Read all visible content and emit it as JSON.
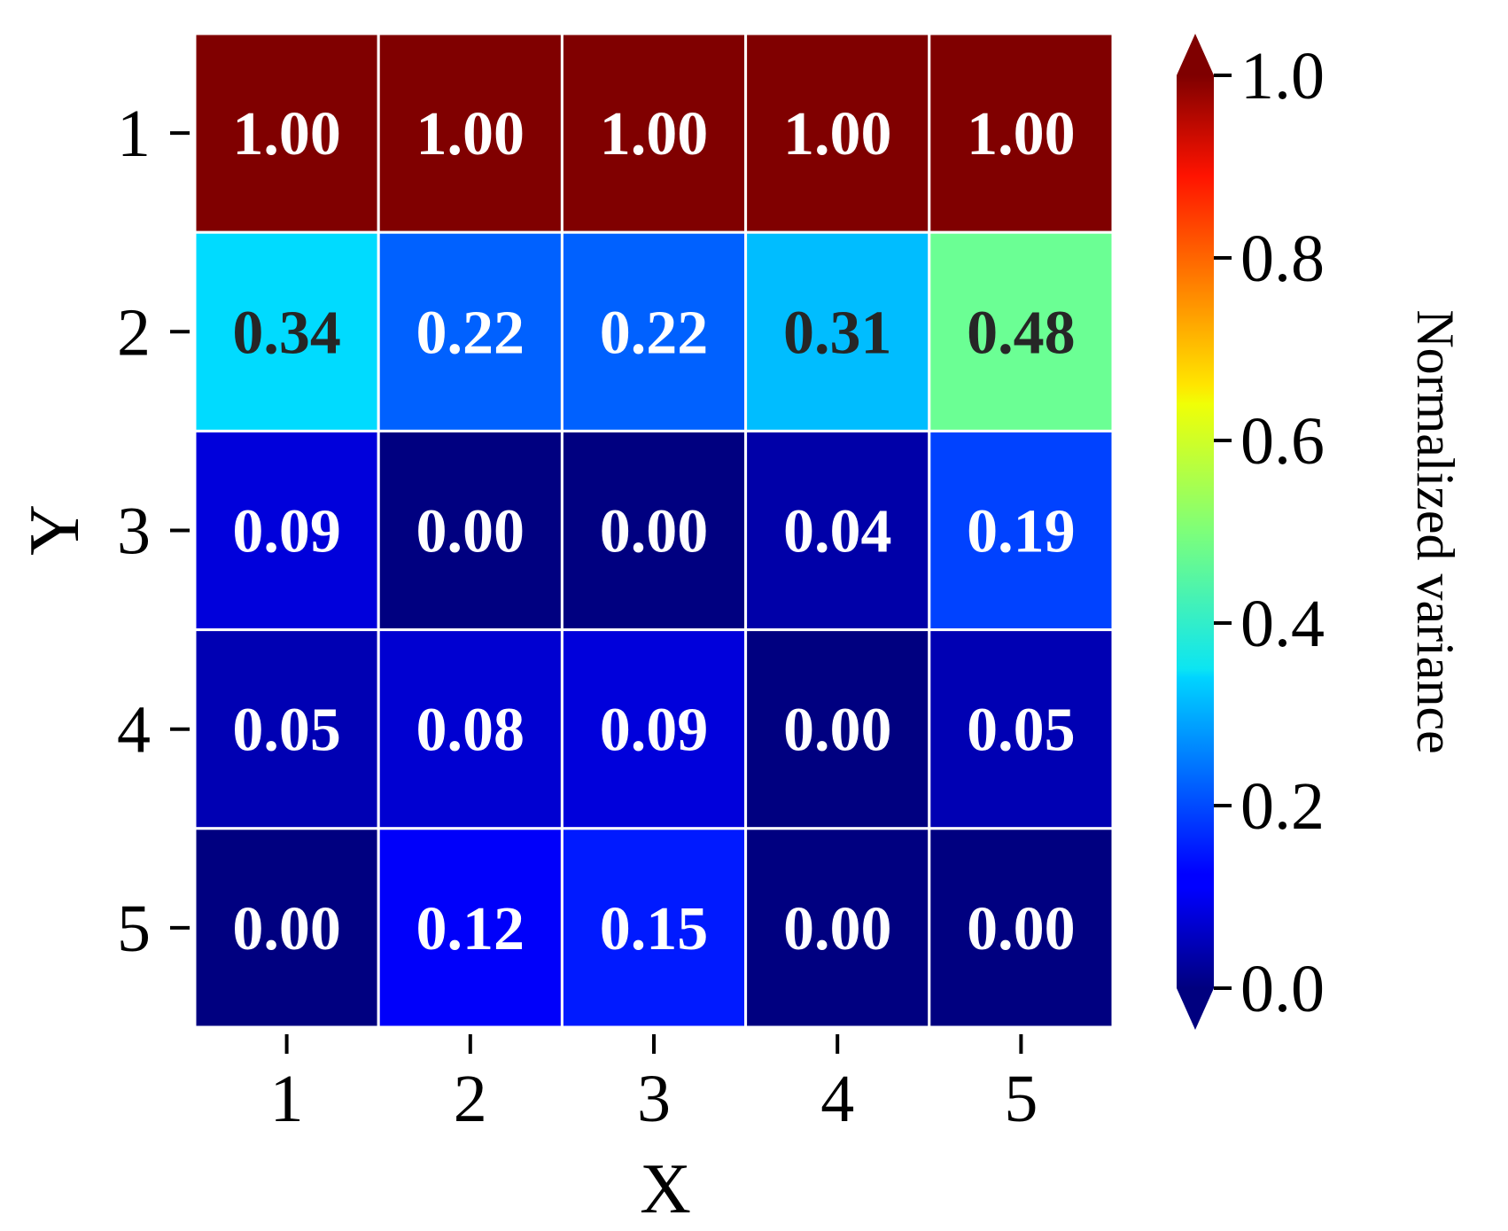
{
  "chart_data": {
    "type": "heatmap",
    "title": "",
    "xlabel": "X",
    "ylabel": "Y",
    "x_categories": [
      "1",
      "2",
      "3",
      "4",
      "5"
    ],
    "y_categories": [
      "1",
      "2",
      "3",
      "4",
      "5"
    ],
    "values": [
      [
        1.0,
        1.0,
        1.0,
        1.0,
        1.0
      ],
      [
        0.34,
        0.22,
        0.22,
        0.31,
        0.48
      ],
      [
        0.09,
        0.0,
        0.0,
        0.04,
        0.19
      ],
      [
        0.05,
        0.08,
        0.09,
        0.0,
        0.05
      ],
      [
        0.0,
        0.12,
        0.15,
        0.0,
        0.0
      ]
    ],
    "value_format": "2 decimals",
    "colormap": "jet",
    "colorbar": {
      "label": "Normalized variance",
      "range": [
        0.0,
        1.0
      ],
      "ticks": [
        "0.0",
        "0.2",
        "0.4",
        "0.6",
        "0.8",
        "1.0"
      ],
      "extend": "both",
      "position": "right"
    },
    "cell_border_color": "#ffffff",
    "grid": false
  }
}
